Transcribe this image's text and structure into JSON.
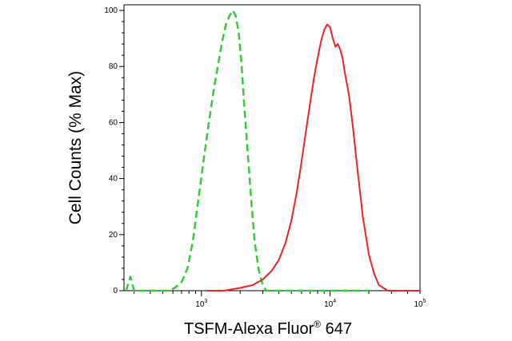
{
  "chart_data": {
    "type": "line",
    "title": "",
    "xlabel": "TSFM-Alexa Fluor",
    "xlabel_superscript": "®",
    "xlabel_suffix": " 647",
    "ylabel": "Cell Counts (% Max)",
    "x_scale": "log",
    "xlim": [
      250,
      50000
    ],
    "ylim": [
      0,
      102
    ],
    "y_ticks": [
      0,
      20,
      40,
      60,
      80,
      100
    ],
    "x_tick_labels": [
      {
        "value": 1000,
        "base": "10",
        "exp": "3"
      },
      {
        "value": 10000,
        "base": "10",
        "exp": "4"
      },
      {
        "value": 100000,
        "base": "10",
        "exp": "5"
      }
    ],
    "grid": false,
    "legend": "none",
    "series": [
      {
        "color": "#33cc33",
        "line_style": "dashed",
        "x": [
          260,
          280,
          300,
          330,
          360,
          400,
          450,
          500,
          560,
          620,
          700,
          780,
          860,
          950,
          1050,
          1150,
          1250,
          1350,
          1450,
          1550,
          1650,
          1750,
          1850,
          1950,
          2050,
          2150,
          2300,
          2450,
          2600,
          2800,
          3000,
          3200,
          3500,
          3800,
          4200,
          5000,
          6000,
          8000,
          10000,
          12000,
          14000,
          16000,
          18000,
          20000
        ],
        "y": [
          0,
          5,
          0,
          0,
          0,
          0,
          0,
          0,
          0,
          1,
          3,
          8,
          18,
          33,
          48,
          61,
          72,
          81,
          89,
          95,
          98,
          100,
          98,
          92,
          81,
          66,
          48,
          31,
          17,
          7,
          2,
          0,
          0,
          0,
          0,
          0,
          0,
          0,
          0,
          0,
          0,
          0,
          0,
          0
        ]
      },
      {
        "color": "#ee2222",
        "line_style": "solid",
        "x": [
          1100,
          1500,
          2000,
          2500,
          3000,
          3500,
          4000,
          4500,
          5000,
          5500,
          6000,
          6500,
          7000,
          7500,
          8000,
          8500,
          9000,
          9500,
          10000,
          10500,
          11000,
          11500,
          12000,
          12500,
          13000,
          14000,
          15000,
          16000,
          17000,
          18000,
          20000,
          22000,
          24000,
          26000,
          28000,
          30000,
          35000,
          40000,
          50000
        ],
        "y": [
          0,
          0,
          1,
          2,
          4,
          7,
          11,
          17,
          25,
          35,
          46,
          57,
          67,
          76,
          83,
          89,
          93,
          95,
          94,
          90,
          87,
          88,
          86,
          83,
          78,
          70,
          59,
          47,
          36,
          26,
          13,
          6,
          2,
          1,
          0,
          0,
          0,
          0,
          0
        ]
      }
    ]
  }
}
